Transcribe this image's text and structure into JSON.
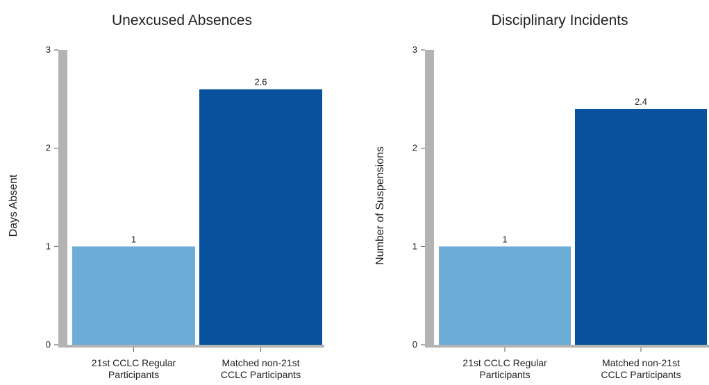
{
  "chart_data": [
    {
      "type": "bar",
      "title": "Unexcused Absences",
      "xlabel": "",
      "ylabel": "Days Absent",
      "ylim": [
        0,
        3
      ],
      "yticks": [
        "0",
        "1",
        "2",
        "3"
      ],
      "categories": [
        [
          "21st CCLC Regular",
          "Participants"
        ],
        [
          "Matched non-21st",
          "CCLC Participants"
        ]
      ],
      "values": [
        1,
        2.6
      ],
      "value_labels": [
        "1",
        "2.6"
      ],
      "bar_colors": [
        "#6badd6",
        "#08519c"
      ],
      "grid": false
    },
    {
      "type": "bar",
      "title": "Disciplinary Incidents",
      "xlabel": "",
      "ylabel": "Number of Suspensions",
      "ylim": [
        0,
        3
      ],
      "yticks": [
        "0",
        "1",
        "2",
        "3"
      ],
      "categories": [
        [
          "21st CCLC Regular",
          "Participants"
        ],
        [
          "Matched non-21st",
          "CCLC Participants"
        ]
      ],
      "values": [
        1,
        2.4
      ],
      "value_labels": [
        "1",
        "2.4"
      ],
      "bar_colors": [
        "#6badd6",
        "#08519c"
      ],
      "grid": false
    }
  ],
  "colors": {
    "axis": "#b3b3b3",
    "tick": "#555555",
    "bar_light": "#6badd6",
    "bar_dark": "#08519c"
  }
}
